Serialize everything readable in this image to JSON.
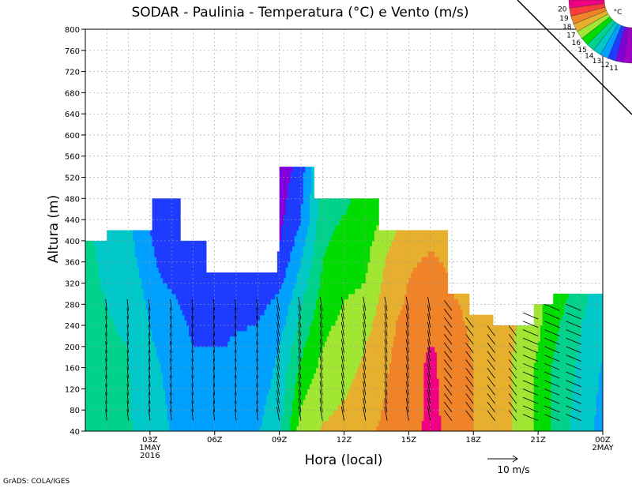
{
  "chart_data": {
    "type": "heatmap",
    "title": "SODAR - Paulinia - Temperatura (°C) e Vento (m/s)",
    "xlabel": "Hora (local)",
    "ylabel": "Altura (m)",
    "ylim": [
      40,
      800
    ],
    "yticks": [
      40,
      80,
      120,
      160,
      200,
      240,
      280,
      320,
      360,
      400,
      440,
      480,
      520,
      560,
      600,
      640,
      680,
      720,
      760,
      800
    ],
    "xlim_hours": [
      0,
      24
    ],
    "xticks": [
      {
        "hour": 3,
        "label": "03Z",
        "sub1": "1MAY",
        "sub2": "2016"
      },
      {
        "hour": 6,
        "label": "06Z"
      },
      {
        "hour": 9,
        "label": "09Z"
      },
      {
        "hour": 12,
        "label": "12Z"
      },
      {
        "hour": 15,
        "label": "15Z"
      },
      {
        "hour": 18,
        "label": "18Z"
      },
      {
        "hour": 21,
        "label": "21Z"
      },
      {
        "hour": 24,
        "label": "00Z",
        "sub1": "2MAY"
      }
    ],
    "grid": true,
    "colorbar": {
      "unit": "°C",
      "levels": [
        11,
        12,
        13,
        14,
        15,
        16,
        17,
        18,
        19,
        20
      ],
      "colors": [
        "#a000c8",
        "#8200dc",
        "#1e3cff",
        "#00a0ff",
        "#00c8c8",
        "#00d28c",
        "#00dc00",
        "#a0e632",
        "#e6af2d",
        "#f08228",
        "#fa3c3c",
        "#f00082"
      ]
    },
    "top_profile": [
      [
        0,
        400
      ],
      [
        1,
        420
      ],
      [
        2.8,
        420
      ],
      [
        3.1,
        480
      ],
      [
        4.1,
        480
      ],
      [
        4.4,
        400
      ],
      [
        5.3,
        400
      ],
      [
        5.6,
        340
      ],
      [
        8.6,
        340
      ],
      [
        8.9,
        380
      ],
      [
        9,
        540
      ],
      [
        10.5,
        540
      ],
      [
        10.6,
        480
      ],
      [
        13.4,
        480
      ],
      [
        13.6,
        420
      ],
      [
        16.7,
        420
      ],
      [
        16.8,
        300
      ],
      [
        17.7,
        300
      ],
      [
        17.8,
        260
      ],
      [
        18.8,
        260
      ],
      [
        18.9,
        240
      ],
      [
        20.6,
        240
      ],
      [
        20.8,
        280
      ],
      [
        21.6,
        280
      ],
      [
        21.7,
        300
      ],
      [
        24,
        300
      ]
    ],
    "temperature_profiles": [
      {
        "hour": 0,
        "temps": [
          [
            40,
            15.2
          ],
          [
            400,
            15.2
          ]
        ]
      },
      {
        "hour": 2,
        "temps": [
          [
            40,
            15.1
          ],
          [
            200,
            15.0
          ],
          [
            280,
            14.8
          ],
          [
            420,
            14.2
          ]
        ]
      },
      {
        "hour": 3.5,
        "temps": [
          [
            40,
            14.3
          ],
          [
            160,
            14.0
          ],
          [
            300,
            13.2
          ],
          [
            480,
            12.0
          ]
        ]
      },
      {
        "hour": 5,
        "temps": [
          [
            40,
            13.2
          ],
          [
            200,
            13.0
          ],
          [
            400,
            12.4
          ]
        ]
      },
      {
        "hour": 6.5,
        "temps": [
          [
            40,
            13.8
          ],
          [
            120,
            13.6
          ],
          [
            200,
            13.0
          ],
          [
            340,
            12.8
          ]
        ]
      },
      {
        "hour": 8,
        "temps": [
          [
            40,
            13.9
          ],
          [
            200,
            13.2
          ],
          [
            340,
            12.5
          ]
        ]
      },
      {
        "hour": 9,
        "temps": [
          [
            40,
            14.8
          ],
          [
            200,
            14.0
          ],
          [
            300,
            13.0
          ],
          [
            380,
            12.0
          ],
          [
            540,
            11.3
          ]
        ]
      },
      {
        "hour": 10,
        "temps": [
          [
            40,
            17.5
          ],
          [
            160,
            16.2
          ],
          [
            320,
            14.5
          ],
          [
            440,
            13.0
          ],
          [
            540,
            12.5
          ]
        ]
      },
      {
        "hour": 11,
        "temps": [
          [
            40,
            18.1
          ],
          [
            200,
            17.0
          ],
          [
            320,
            16.2
          ],
          [
            480,
            15.5
          ]
        ]
      },
      {
        "hour": 12,
        "temps": [
          [
            40,
            18.3
          ],
          [
            200,
            17.5
          ],
          [
            320,
            16.8
          ],
          [
            480,
            15.8
          ]
        ]
      },
      {
        "hour": 13,
        "temps": [
          [
            40,
            18.8
          ],
          [
            200,
            18.0
          ],
          [
            320,
            17.0
          ],
          [
            480,
            16.3
          ]
        ]
      },
      {
        "hour": 14,
        "temps": [
          [
            40,
            19.2
          ],
          [
            240,
            18.8
          ],
          [
            380,
            18.0
          ],
          [
            460,
            17.0
          ]
        ]
      },
      {
        "hour": 15,
        "temps": [
          [
            40,
            19.5
          ],
          [
            240,
            19.3
          ],
          [
            420,
            18.7
          ]
        ]
      },
      {
        "hour": 16,
        "temps": [
          [
            40,
            20.3
          ],
          [
            180,
            20.2
          ],
          [
            280,
            19.5
          ],
          [
            420,
            18.8
          ]
        ]
      },
      {
        "hour": 17,
        "temps": [
          [
            40,
            19.7
          ],
          [
            200,
            19.5
          ],
          [
            300,
            19.0
          ],
          [
            420,
            18.8
          ]
        ]
      },
      {
        "hour": 18,
        "temps": [
          [
            40,
            19.0
          ],
          [
            160,
            19.0
          ],
          [
            260,
            18.8
          ]
        ]
      },
      {
        "hour": 19,
        "temps": [
          [
            40,
            18.6
          ],
          [
            160,
            18.4
          ],
          [
            240,
            18.3
          ]
        ]
      },
      {
        "hour": 20,
        "temps": [
          [
            40,
            17.8
          ],
          [
            160,
            17.9
          ],
          [
            240,
            18.0
          ]
        ]
      },
      {
        "hour": 21,
        "temps": [
          [
            40,
            16.8
          ],
          [
            160,
            16.8
          ],
          [
            240,
            17.2
          ],
          [
            280,
            17.2
          ]
        ]
      },
      {
        "hour": 22,
        "temps": [
          [
            40,
            15.5
          ],
          [
            160,
            15.5
          ],
          [
            240,
            16.0
          ],
          [
            300,
            16.5
          ]
        ]
      },
      {
        "hour": 23,
        "temps": [
          [
            40,
            14.5
          ],
          [
            160,
            14.8
          ],
          [
            240,
            15.0
          ],
          [
            300,
            15.2
          ]
        ]
      },
      {
        "hour": 24,
        "temps": [
          [
            40,
            13.6
          ],
          [
            160,
            13.9
          ],
          [
            240,
            14.6
          ],
          [
            300,
            14.6
          ]
        ]
      }
    ],
    "wind_reference": {
      "label": "10 m/s"
    },
    "footer": "GrADS: COLA/IGES"
  }
}
